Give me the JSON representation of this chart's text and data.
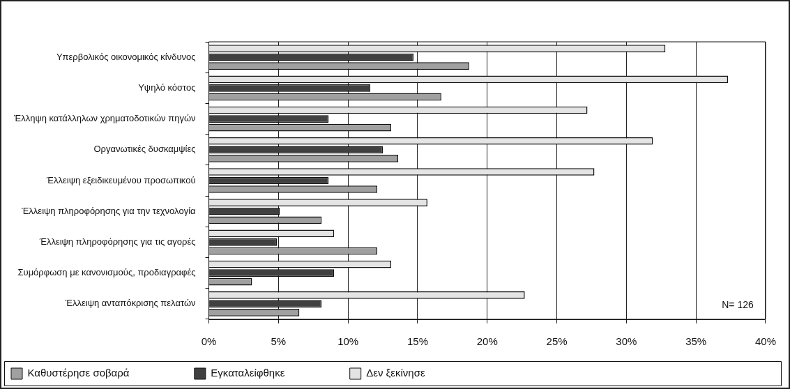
{
  "chart_data": {
    "type": "bar",
    "orientation": "horizontal",
    "categories": [
      "Υπερβολικός οικονομικός κίνδυνος",
      "Υψηλό κόστος",
      "Έλληψη κατάλληλων χρηματοδοτικών πηγών",
      "Οργανωτικές δυσκαμψίες",
      "Έλλειψη εξειδικευμένου προσωπικού",
      "Έλλειψη πληροφόρησης για την τεχνολογία",
      "Έλλειψη πληροφόρησης για τις αγορές",
      "Συμόρφωση με κανονισμούς, προδιαγραφές",
      "Έλλειψη ανταπόκρισης πελατών"
    ],
    "series": [
      {
        "name": "Καθυστέρησε σοβαρά",
        "color": "#a0a0a0",
        "values": [
          18.7,
          16.7,
          13.1,
          13.6,
          12.1,
          8.1,
          12.1,
          3.1,
          6.5
        ]
      },
      {
        "name": "Εγκαταλείφθηκε",
        "color": "#404040",
        "values": [
          14.7,
          11.6,
          8.6,
          12.5,
          8.6,
          5.1,
          4.9,
          9.0,
          8.1
        ]
      },
      {
        "name": "Δεν ξεκίνησε",
        "color": "#e4e4e4",
        "values": [
          32.8,
          37.3,
          27.2,
          31.9,
          27.7,
          15.7,
          9.0,
          13.1,
          22.7
        ]
      }
    ],
    "xlim": [
      0,
      40
    ],
    "xticks": [
      {
        "value": 0,
        "label": "0%"
      },
      {
        "value": 5,
        "label": "5%"
      },
      {
        "value": 10,
        "label": "10%"
      },
      {
        "value": 15,
        "label": "15%"
      },
      {
        "value": 20,
        "label": "20%"
      },
      {
        "value": 25,
        "label": "25%"
      },
      {
        "value": 30,
        "label": "30%"
      },
      {
        "value": 35,
        "label": "35%"
      },
      {
        "value": 40,
        "label": "40%"
      }
    ],
    "grid": "x",
    "legend": "bottom left",
    "annotations": [
      "N= 126"
    ]
  }
}
